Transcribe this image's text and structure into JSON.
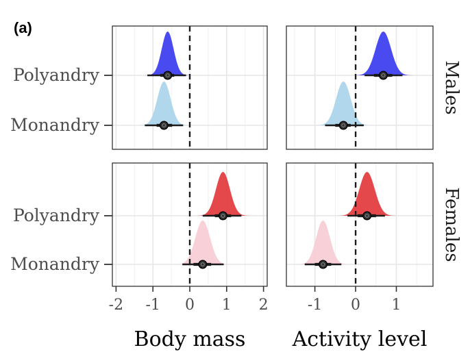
{
  "panel_label": "(a)",
  "chart_data": {
    "type": "halfeye",
    "facets": {
      "columns": [
        "Body mass",
        "Activity level"
      ],
      "rows": [
        "Males",
        "Females"
      ]
    },
    "categories": [
      "Polyandry",
      "Monandry"
    ],
    "x_axes": [
      {
        "title": "Body mass",
        "xlim": [
          -2.1,
          2.1
        ],
        "ticks": [
          -2,
          -1,
          0,
          1,
          2
        ],
        "tick_labels": [
          "-2",
          "-1",
          "0",
          "1",
          "2"
        ]
      },
      {
        "title": "Activity level",
        "xlim": [
          -1.7,
          1.9
        ],
        "ticks": [
          -1,
          0,
          1
        ],
        "tick_labels": [
          "-1",
          "0",
          "1"
        ]
      }
    ],
    "reference_line_x": 0,
    "grid": true,
    "colors": {
      "Males": {
        "Polyandry": "#3b3bf0",
        "Monandry": "#aad4ea"
      },
      "Females": {
        "Polyandry": "#e2383b",
        "Monandry": "#f7ccd4"
      }
    },
    "series": [
      {
        "row": "Males",
        "column": "Body mass",
        "category": "Polyandry",
        "mean": -0.6,
        "sd": 0.16,
        "ci66": [
          -0.8,
          -0.42
        ],
        "ci95": [
          -1.15,
          -0.1
        ]
      },
      {
        "row": "Males",
        "column": "Body mass",
        "category": "Monandry",
        "mean": -0.7,
        "sd": 0.18,
        "ci66": [
          -0.9,
          -0.48
        ],
        "ci95": [
          -1.22,
          -0.18
        ]
      },
      {
        "row": "Males",
        "column": "Activity level",
        "category": "Polyandry",
        "mean": 0.68,
        "sd": 0.19,
        "ci66": [
          0.45,
          0.9
        ],
        "ci95": [
          0.22,
          1.15
        ]
      },
      {
        "row": "Males",
        "column": "Activity level",
        "category": "Monandry",
        "mean": -0.3,
        "sd": 0.18,
        "ci66": [
          -0.5,
          -0.12
        ],
        "ci95": [
          -0.75,
          0.2
        ]
      },
      {
        "row": "Females",
        "column": "Body mass",
        "category": "Polyandry",
        "mean": 0.9,
        "sd": 0.19,
        "ci66": [
          0.68,
          1.12
        ],
        "ci95": [
          0.35,
          1.4
        ]
      },
      {
        "row": "Females",
        "column": "Body mass",
        "category": "Monandry",
        "mean": 0.35,
        "sd": 0.2,
        "ci66": [
          0.1,
          0.58
        ],
        "ci95": [
          -0.2,
          0.92
        ]
      },
      {
        "row": "Females",
        "column": "Activity level",
        "category": "Polyandry",
        "mean": 0.28,
        "sd": 0.19,
        "ci66": [
          0.05,
          0.5
        ],
        "ci95": [
          -0.2,
          0.72
        ]
      },
      {
        "row": "Females",
        "column": "Activity level",
        "category": "Monandry",
        "mean": -0.8,
        "sd": 0.17,
        "ci66": [
          -1.0,
          -0.6
        ],
        "ci95": [
          -1.25,
          -0.35
        ]
      }
    ]
  }
}
